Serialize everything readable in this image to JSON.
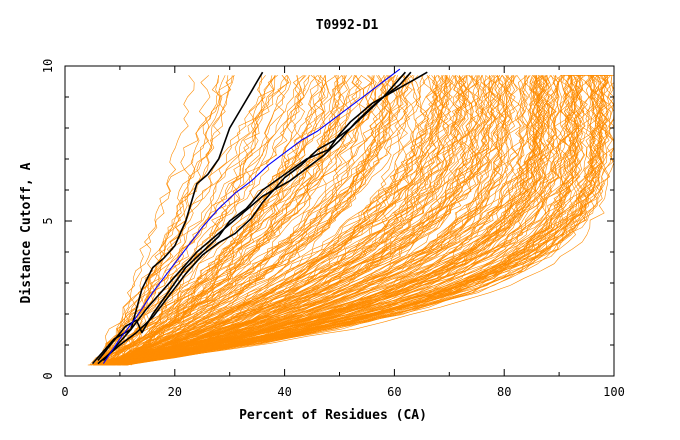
{
  "chart_data": {
    "type": "line",
    "title": "T0992-D1",
    "xlabel": "Percent of Residues (CA)",
    "ylabel": "Distance Cutoff, A",
    "xlim": [
      0,
      100
    ],
    "ylim": [
      0,
      10
    ],
    "x_ticks": [
      0,
      20,
      40,
      60,
      80,
      100
    ],
    "y_ticks": [
      0,
      5,
      10
    ],
    "grid": false,
    "legend": "none",
    "colors": {
      "background_series": "#ff8c00",
      "highlight": "#000000",
      "reference": "#0000ff"
    },
    "highlight_series": [
      {
        "x": [
          7,
          12,
          14,
          16,
          18,
          20,
          22,
          24,
          26,
          28,
          30,
          32,
          34,
          35,
          36
        ],
        "y": [
          0.5,
          1.5,
          2.8,
          3.5,
          3.8,
          4.2,
          5.0,
          6.2,
          6.5,
          7.0,
          8.0,
          8.6,
          9.2,
          9.5,
          9.8
        ]
      },
      {
        "x": [
          6,
          11,
          13,
          14,
          16,
          18,
          20,
          22,
          25,
          28,
          30,
          33,
          36,
          40,
          44,
          48,
          50,
          52,
          54,
          56,
          58,
          60,
          62,
          64,
          66
        ],
        "y": [
          0.5,
          1.6,
          1.8,
          1.4,
          2.0,
          2.5,
          3.0,
          3.5,
          4.0,
          4.5,
          5.0,
          5.4,
          6.0,
          6.5,
          7.0,
          7.3,
          7.8,
          8.2,
          8.5,
          8.8,
          9.0,
          9.2,
          9.4,
          9.6,
          9.8
        ]
      },
      {
        "x": [
          5,
          9,
          12,
          15,
          18,
          20,
          22,
          24,
          26,
          28,
          30,
          32,
          34,
          36,
          38,
          41,
          44,
          47,
          50,
          53,
          56,
          58,
          60,
          62
        ],
        "y": [
          0.4,
          1.2,
          1.5,
          2.2,
          2.8,
          3.2,
          3.6,
          4.0,
          4.3,
          4.6,
          4.9,
          5.2,
          5.5,
          5.8,
          6.0,
          6.3,
          6.7,
          7.1,
          7.6,
          8.2,
          8.7,
          9.0,
          9.4,
          9.8
        ]
      },
      {
        "x": [
          6,
          10,
          13,
          16,
          19,
          22,
          25,
          28,
          31,
          34,
          36,
          38,
          40,
          43,
          46,
          49,
          52,
          55,
          58,
          61,
          63
        ],
        "y": [
          0.4,
          1.0,
          1.4,
          1.9,
          2.6,
          3.3,
          3.9,
          4.3,
          4.6,
          5.1,
          5.6,
          6.0,
          6.4,
          6.8,
          7.3,
          7.6,
          8.0,
          8.5,
          9.0,
          9.4,
          9.8
        ]
      }
    ],
    "reference_series": {
      "x": [
        7,
        10,
        13,
        16,
        19,
        22,
        25,
        28,
        31,
        34,
        37,
        40,
        43,
        46,
        49,
        52,
        55,
        58,
        61
      ],
      "y": [
        0.4,
        1.2,
        1.9,
        2.7,
        3.4,
        4.1,
        4.8,
        5.4,
        5.9,
        6.3,
        6.8,
        7.2,
        7.6,
        7.9,
        8.3,
        8.7,
        9.1,
        9.5,
        9.9
      ]
    },
    "background_series_count": 260
  }
}
